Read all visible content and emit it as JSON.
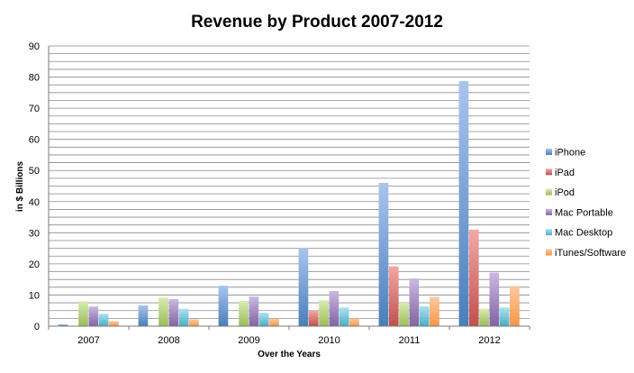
{
  "chart_data": {
    "type": "bar",
    "title": "Revenue by Product 2007-2012",
    "xlabel": "Over the Years",
    "ylabel": "in $ Billions",
    "ylim": [
      0,
      90
    ],
    "yticks": [
      0,
      10,
      20,
      30,
      40,
      50,
      60,
      70,
      80,
      90
    ],
    "ytick_labels": [
      "0",
      "10",
      "20",
      "30",
      "40",
      "50",
      "60",
      "70",
      "80",
      "90"
    ],
    "grid": "horizontal",
    "legend_position": "right",
    "categories": [
      "2007",
      "2008",
      "2009",
      "2010",
      "2011",
      "2012"
    ],
    "series": [
      {
        "name": "iPhone",
        "color": "#4a7ebb",
        "light": "#a9c4ee",
        "values": [
          0.6,
          6.7,
          13.0,
          25.2,
          46.0,
          78.7
        ]
      },
      {
        "name": "iPad",
        "color": "#c0504d",
        "light": "#f2a8a6",
        "values": [
          0,
          0,
          0,
          5.0,
          19.2,
          31.0
        ]
      },
      {
        "name": "iPod",
        "color": "#9bbb59",
        "light": "#d7ecb1",
        "values": [
          8.0,
          9.2,
          8.1,
          8.3,
          7.5,
          5.6
        ]
      },
      {
        "name": "Mac Portable",
        "color": "#8064a2",
        "light": "#cbb8e2",
        "values": [
          6.3,
          8.7,
          9.5,
          11.3,
          15.3,
          17.2
        ]
      },
      {
        "name": "Mac Desktop",
        "color": "#4bacc6",
        "light": "#ade1ef",
        "values": [
          4.0,
          5.6,
          4.3,
          6.0,
          6.4,
          6.0
        ]
      },
      {
        "name": "iTunes/Software",
        "color": "#f79646",
        "light": "#fcc9a0",
        "values": [
          1.6,
          2.2,
          2.4,
          2.5,
          9.4,
          12.9
        ]
      }
    ]
  }
}
